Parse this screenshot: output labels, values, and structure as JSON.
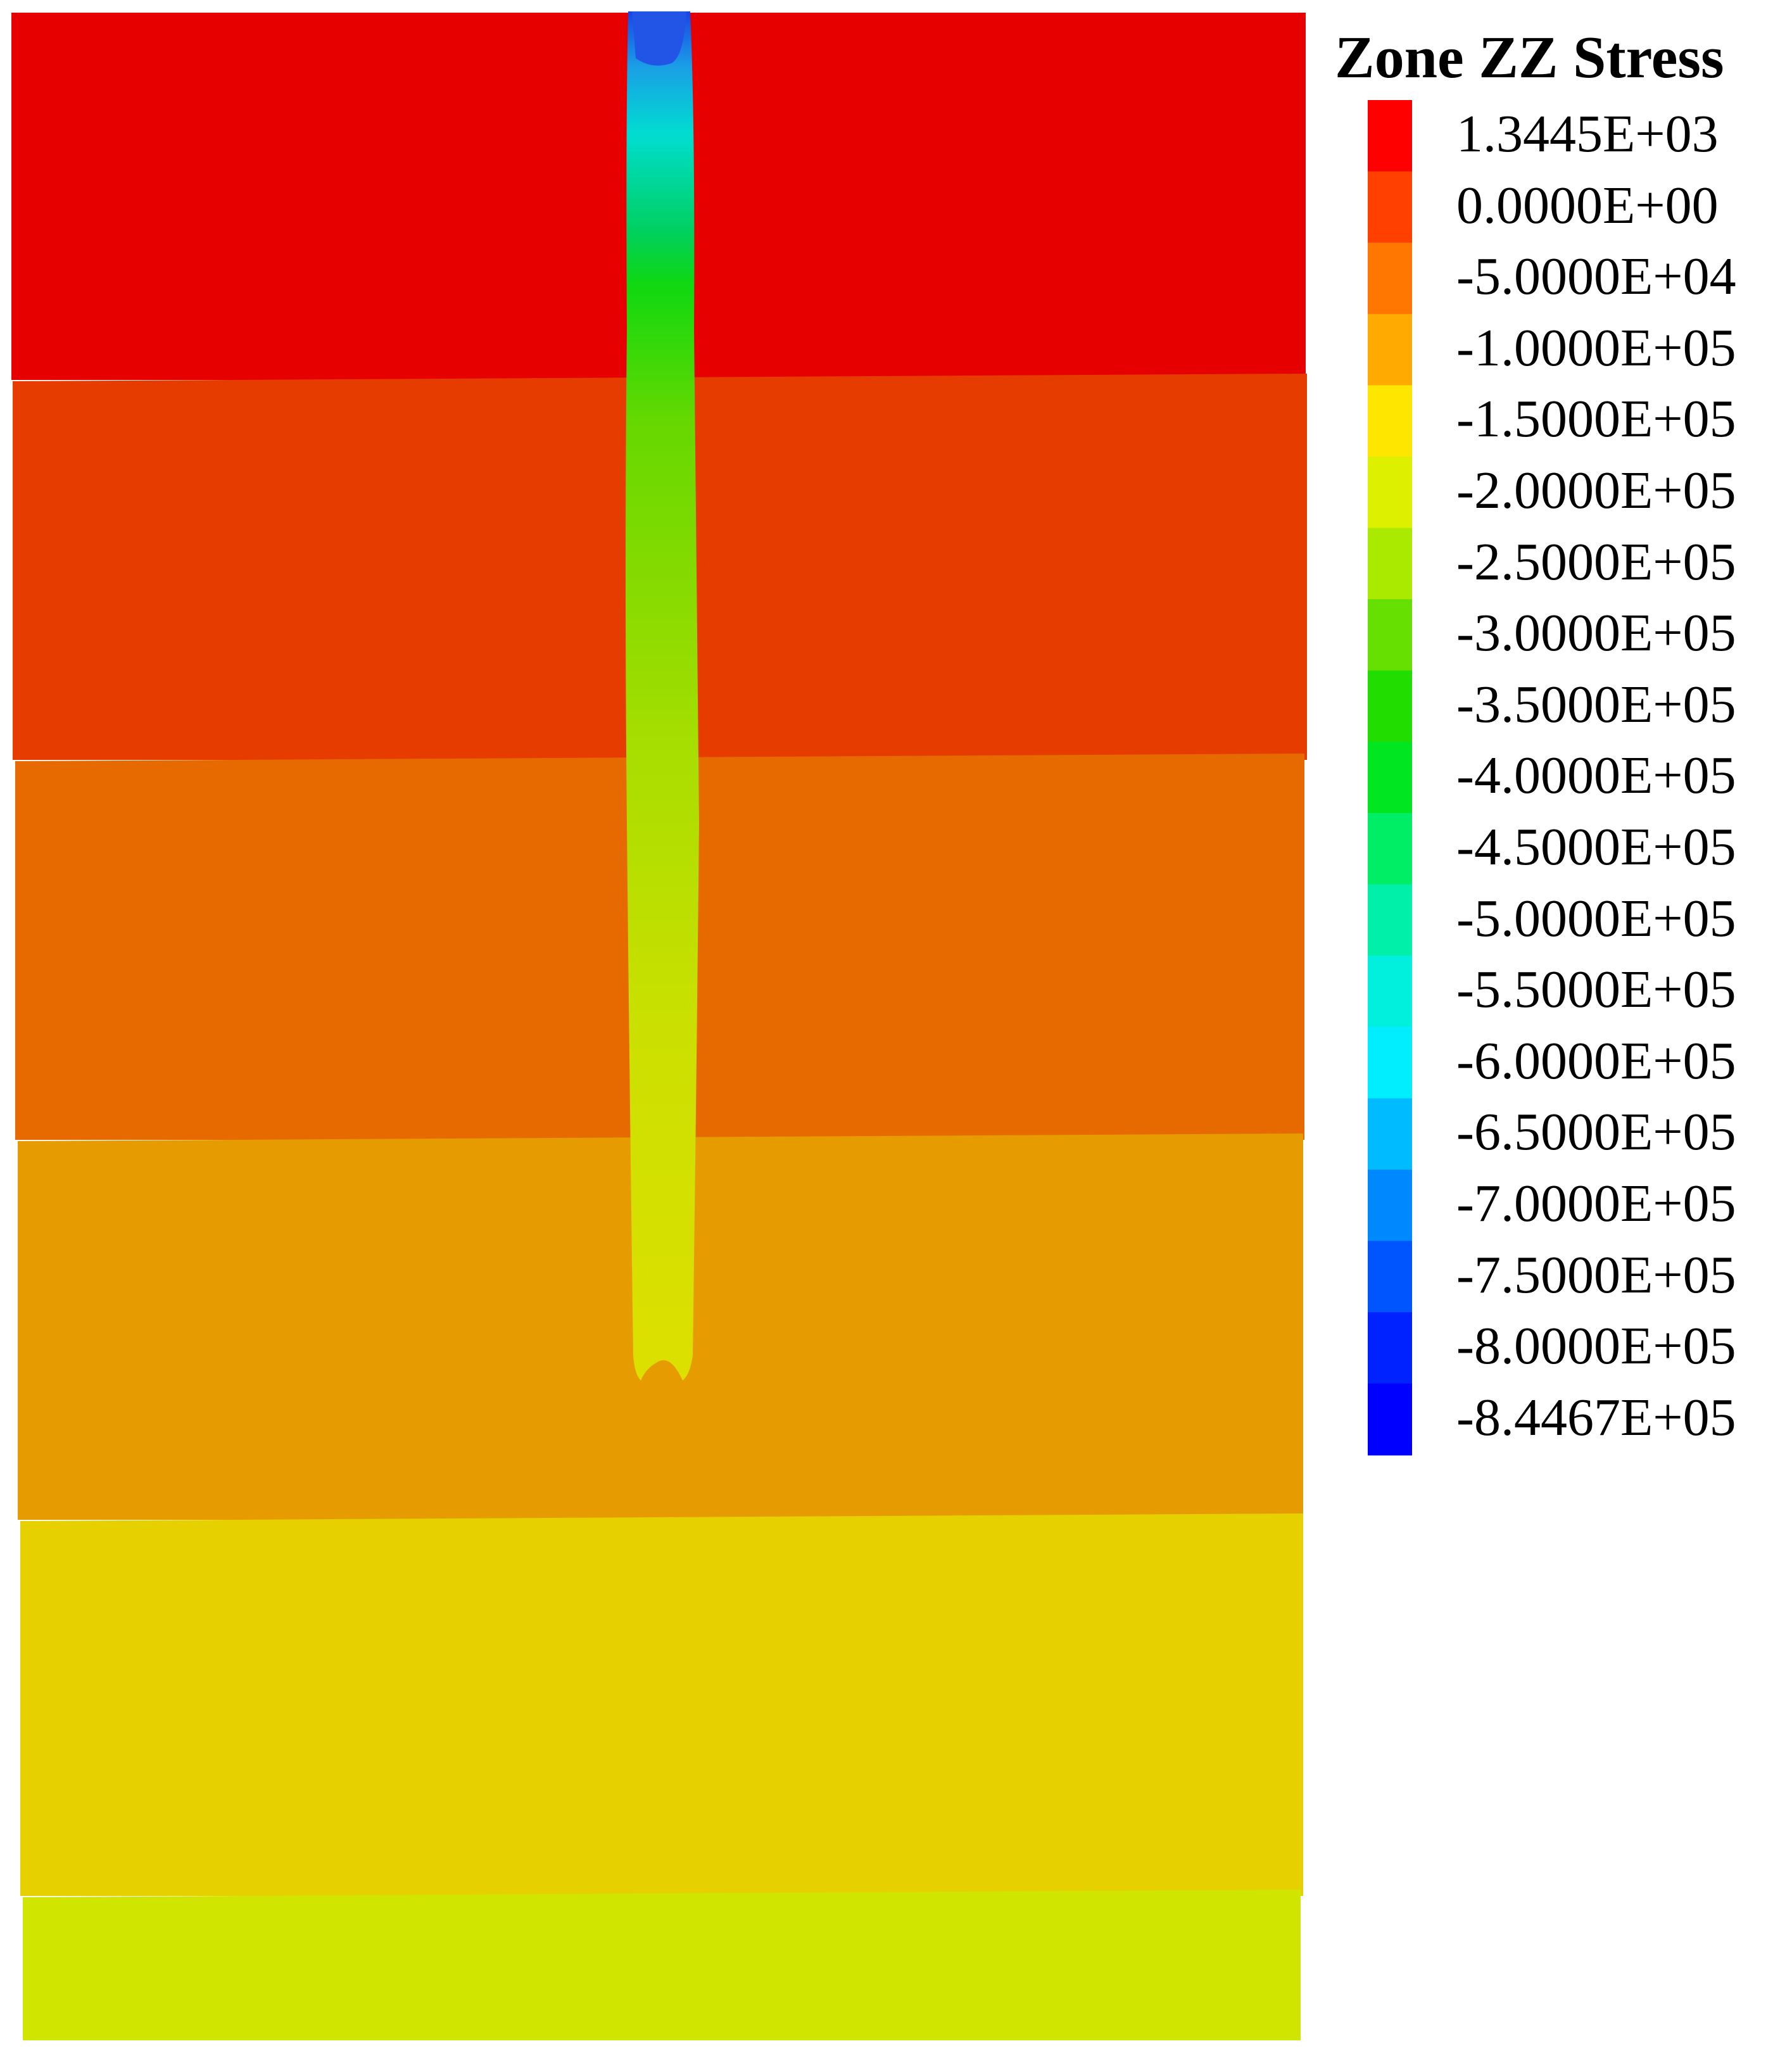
{
  "legend": {
    "title": "Zone ZZ Stress",
    "entries": [
      {
        "label": "1.3445E+03",
        "color": "#ff0000"
      },
      {
        "label": "0.0000E+00",
        "color": "#ff4000"
      },
      {
        "label": "-5.0000E+04",
        "color": "#ff7700"
      },
      {
        "label": "-1.0000E+05",
        "color": "#ffaa00"
      },
      {
        "label": "-1.5000E+05",
        "color": "#ffe600"
      },
      {
        "label": "-2.0000E+05",
        "color": "#ddf000"
      },
      {
        "label": "-2.5000E+05",
        "color": "#aaea00"
      },
      {
        "label": "-3.0000E+05",
        "color": "#66e000"
      },
      {
        "label": "-3.5000E+05",
        "color": "#22dd00"
      },
      {
        "label": "-4.0000E+05",
        "color": "#00e620"
      },
      {
        "label": "-4.5000E+05",
        "color": "#00ee66"
      },
      {
        "label": "-5.0000E+05",
        "color": "#00f0aa"
      },
      {
        "label": "-5.5000E+05",
        "color": "#00f0dd"
      },
      {
        "label": "-6.0000E+05",
        "color": "#00eeff"
      },
      {
        "label": "-6.5000E+05",
        "color": "#00bbff"
      },
      {
        "label": "-7.0000E+05",
        "color": "#0088ff"
      },
      {
        "label": "-7.5000E+05",
        "color": "#0055ff"
      },
      {
        "label": "-8.0000E+05",
        "color": "#0022ff"
      },
      {
        "label": "-8.4467E+05",
        "color": "#0000ff"
      }
    ]
  },
  "contour_bands": [
    {
      "color": "#e60000"
    },
    {
      "color": "#e63c00"
    },
    {
      "color": "#e66a00"
    },
    {
      "color": "#e69c00"
    },
    {
      "color": "#e6d000"
    },
    {
      "color": "#d0e600"
    }
  ],
  "pile_gradient": [
    {
      "offset": "0",
      "color": "#1a44e6"
    },
    {
      "offset": "0.04",
      "color": "#1a9ee6"
    },
    {
      "offset": "0.09",
      "color": "#00ddd0"
    },
    {
      "offset": "0.16",
      "color": "#00d060"
    },
    {
      "offset": "0.2",
      "color": "#10d810"
    },
    {
      "offset": "0.3",
      "color": "#66d800"
    },
    {
      "offset": "0.55",
      "color": "#aade00"
    },
    {
      "offset": "0.75",
      "color": "#cce000"
    },
    {
      "offset": "1",
      "color": "#dde000"
    }
  ]
}
